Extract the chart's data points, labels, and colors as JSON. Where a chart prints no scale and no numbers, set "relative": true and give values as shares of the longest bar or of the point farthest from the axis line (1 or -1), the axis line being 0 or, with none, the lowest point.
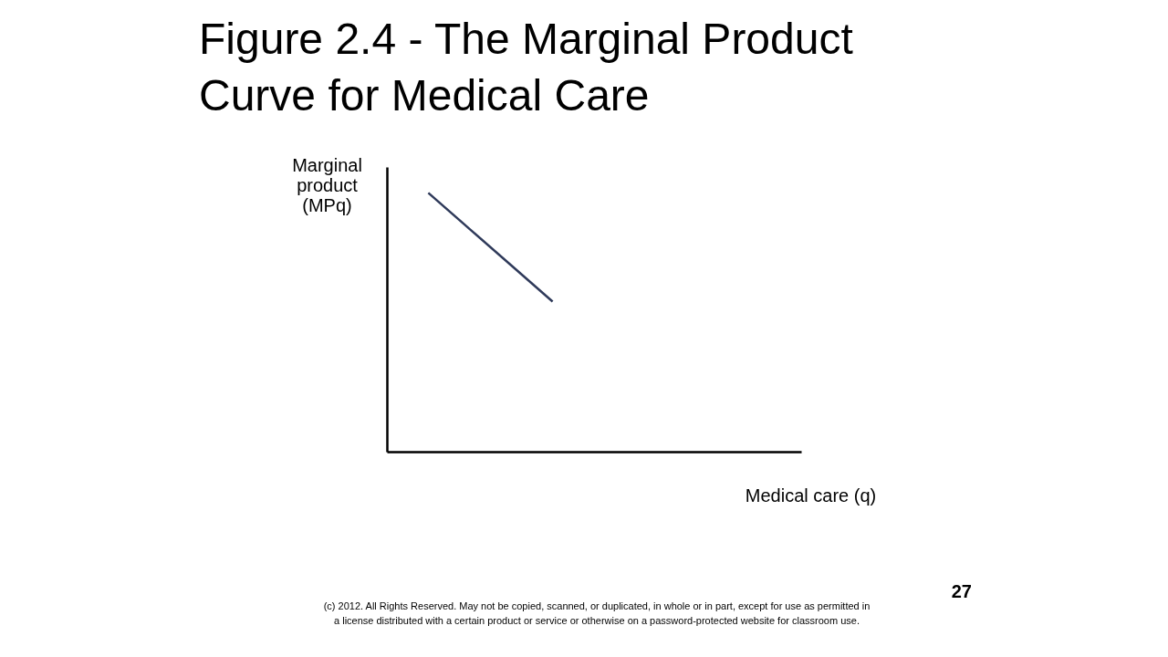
{
  "chart_data": {
    "type": "line",
    "title": [
      "Figure 2.4 - The Marginal Product",
      "Curve for Medical Care"
    ],
    "ylabel": [
      "Marginal",
      "product",
      "(MPq)"
    ],
    "xlabel": "Medical care (q)",
    "relative": true,
    "grid": false,
    "legend": false,
    "marker": "none",
    "line_style": "solid",
    "categories": [
      null,
      null,
      null,
      null,
      null,
      null,
      null,
      null,
      null,
      null,
      null
    ],
    "series": [
      {
        "color": "#2f3a5a",
        "values": [
          null,
          1,
          0.86,
          0.72,
          0.58,
          null,
          null,
          null,
          null,
          null,
          null
        ]
      }
    ],
    "annotations": [
      "27",
      "(c) 2012. All Rights Reserved. May not be copied, scanned, or duplicated, in whole or in part, except for use as permitted in a license distributed with a certain product or service or otherwise on a password-protected website for classroom use."
    ]
  }
}
